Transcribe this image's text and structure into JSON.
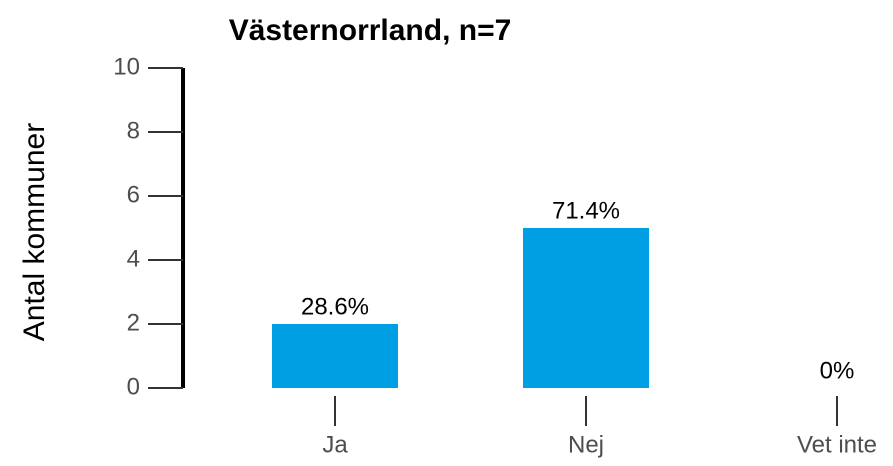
{
  "chart_data": {
    "type": "bar",
    "title": "Västernorrland, n=7",
    "y_label": "Antal kommuner",
    "categories": [
      "Ja",
      "Nej",
      "Vet inte"
    ],
    "values": [
      2,
      5,
      0
    ],
    "value_labels": [
      "28.6%",
      "71.4%",
      "0%"
    ],
    "color": "#009fe3",
    "ylim": [
      0,
      10
    ],
    "yticks": [
      0,
      2,
      4,
      6,
      8,
      10
    ],
    "grid": false
  }
}
